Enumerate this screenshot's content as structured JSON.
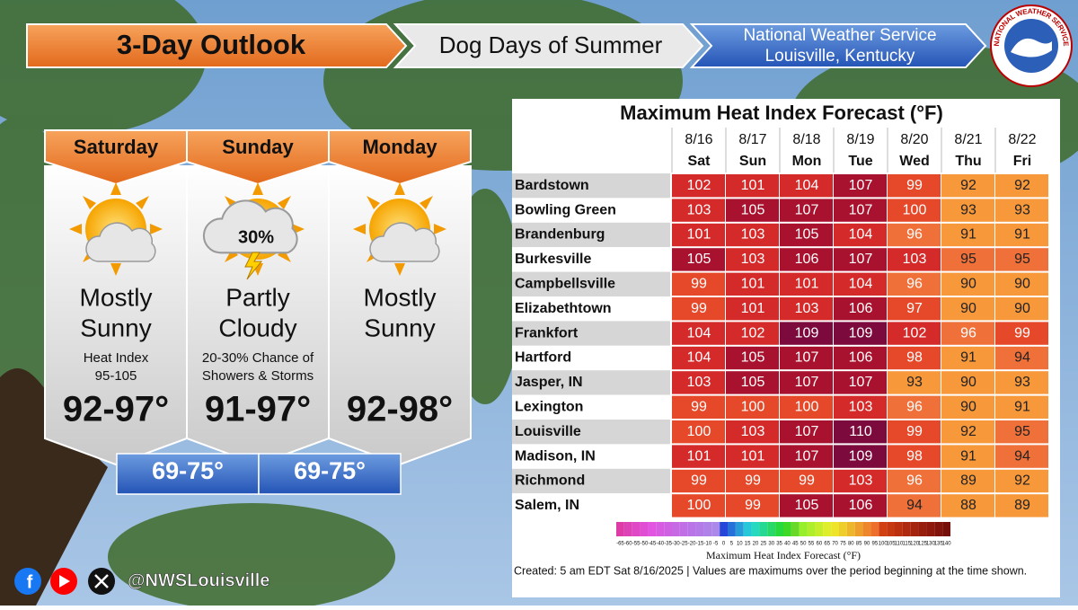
{
  "header": {
    "title": "3-Day Outlook",
    "subtitle": "Dog Days of Summer",
    "office": "National Weather Service",
    "location": "Louisville, Kentucky",
    "logo_text": "NATIONAL WEATHER SERVICE"
  },
  "days": [
    {
      "name": "Saturday",
      "condition": [
        "Mostly",
        "Sunny"
      ],
      "details": [
        "Heat Index",
        "95-105"
      ],
      "high": "92-97°"
    },
    {
      "name": "Sunday",
      "icon_label": "30%",
      "condition": [
        "Partly",
        "Cloudy"
      ],
      "details": [
        "20-30% Chance of",
        "Showers & Storms"
      ],
      "high": "91-97°"
    },
    {
      "name": "Monday",
      "condition": [
        "Mostly",
        "Sunny"
      ],
      "high": "92-98°"
    }
  ],
  "lows": [
    "69-75°",
    "69-75°"
  ],
  "table": {
    "title": "Maximum Heat Index Forecast (°F)",
    "dates": [
      "8/16",
      "8/17",
      "8/18",
      "8/19",
      "8/20",
      "8/21",
      "8/22"
    ],
    "weekdays": [
      "Sat",
      "Sun",
      "Mon",
      "Tue",
      "Wed",
      "Thu",
      "Fri"
    ],
    "rows": [
      {
        "name": "Bardstown",
        "values": [
          102,
          101,
          104,
          107,
          99,
          92,
          92
        ]
      },
      {
        "name": "Bowling Green",
        "values": [
          103,
          105,
          107,
          107,
          100,
          93,
          93
        ]
      },
      {
        "name": "Brandenburg",
        "values": [
          101,
          103,
          105,
          104,
          96,
          91,
          91
        ]
      },
      {
        "name": "Burkesville",
        "values": [
          105,
          103,
          106,
          107,
          103,
          95,
          95
        ]
      },
      {
        "name": "Campbellsville",
        "values": [
          99,
          101,
          101,
          104,
          96,
          90,
          90
        ]
      },
      {
        "name": "Elizabethtown",
        "values": [
          99,
          101,
          103,
          106,
          97,
          90,
          90
        ]
      },
      {
        "name": "Frankfort",
        "values": [
          104,
          102,
          109,
          109,
          102,
          96,
          99
        ]
      },
      {
        "name": "Hartford",
        "values": [
          104,
          105,
          107,
          106,
          98,
          91,
          94
        ]
      },
      {
        "name": "Jasper, IN",
        "values": [
          103,
          105,
          107,
          107,
          93,
          90,
          93
        ]
      },
      {
        "name": "Lexington",
        "values": [
          99,
          100,
          100,
          103,
          96,
          90,
          91
        ]
      },
      {
        "name": "Louisville",
        "values": [
          100,
          103,
          107,
          110,
          99,
          92,
          95
        ]
      },
      {
        "name": "Madison, IN",
        "values": [
          101,
          101,
          107,
          109,
          98,
          91,
          94
        ]
      },
      {
        "name": "Richmond",
        "values": [
          99,
          99,
          99,
          103,
          96,
          89,
          92
        ]
      },
      {
        "name": "Salem, IN",
        "values": [
          100,
          99,
          105,
          106,
          94,
          88,
          89
        ]
      }
    ],
    "legend": {
      "title": "Maximum Heat Index Forecast (°F)",
      "ticks": [
        -65,
        -60,
        -55,
        -50,
        -45,
        -40,
        -35,
        -30,
        -25,
        -20,
        -15,
        -10,
        -5,
        0,
        5,
        10,
        15,
        20,
        25,
        30,
        35,
        40,
        45,
        50,
        55,
        60,
        65,
        70,
        75,
        80,
        85,
        90,
        95,
        100,
        105,
        110,
        115,
        120,
        125,
        130,
        135,
        140
      ]
    },
    "footer": "Created: 5 am EDT Sat 8/16/2025  |  Values are maximums over the period beginning at the time shown."
  },
  "social": {
    "handle": "@NWSLouisville"
  }
}
